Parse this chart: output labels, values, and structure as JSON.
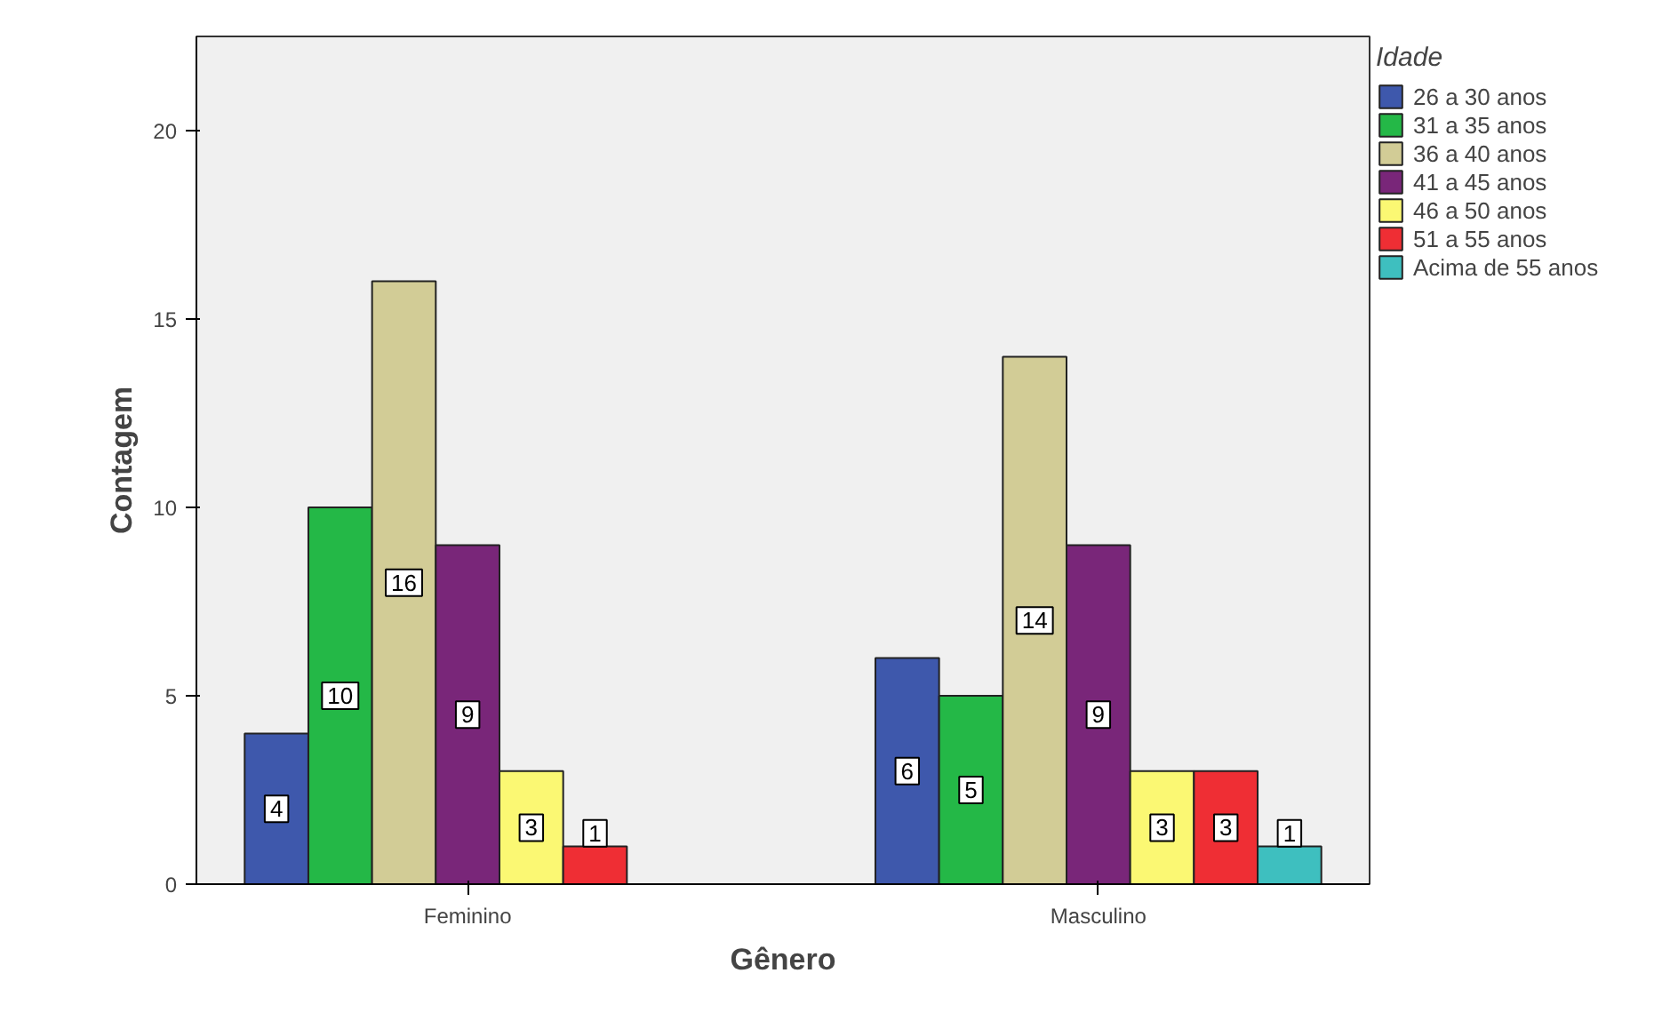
{
  "chart_data": {
    "type": "bar",
    "xlabel": "Gênero",
    "ylabel": "Contagem",
    "legend_title": "Idade",
    "categories": [
      "Feminino",
      "Masculino"
    ],
    "series": [
      {
        "name": "26 a 30 anos",
        "color": "#3e58ac",
        "values": [
          4,
          6
        ]
      },
      {
        "name": "31 a 35 anos",
        "color": "#24b847",
        "values": [
          10,
          5
        ]
      },
      {
        "name": "36 a 40 anos",
        "color": "#d2cc96",
        "values": [
          16,
          14
        ]
      },
      {
        "name": "41 a 45 anos",
        "color": "#792679",
        "values": [
          9,
          9
        ]
      },
      {
        "name": "46 a 50 anos",
        "color": "#fbf873",
        "values": [
          3,
          3
        ]
      },
      {
        "name": "51 a 55 anos",
        "color": "#ef2e34",
        "values": [
          1,
          3
        ]
      },
      {
        "name": "Acima de 55 anos",
        "color": "#3ebfbf",
        "values": [
          null,
          1
        ]
      }
    ],
    "ylim": [
      0,
      22.5
    ],
    "yticks": [
      0,
      5,
      10,
      15,
      20
    ],
    "grid": false,
    "legend": "right",
    "data_labels": true
  }
}
